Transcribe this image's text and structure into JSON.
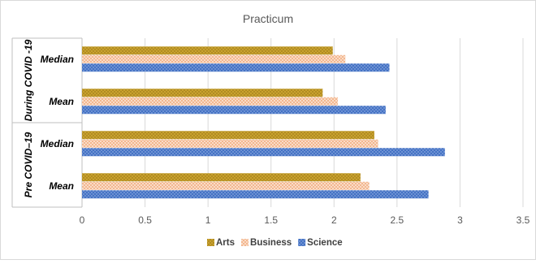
{
  "chart_data": {
    "type": "bar",
    "orientation": "horizontal",
    "title": "Practicum",
    "groups": [
      {
        "label": "During COVID -19",
        "categories": [
          "Median",
          "Mean"
        ]
      },
      {
        "label": "Pre COVID–19",
        "categories": [
          "Median",
          "Mean"
        ]
      }
    ],
    "series": [
      {
        "name": "Arts",
        "color": "#c9a22e",
        "pattern": "dotted",
        "values": [
          1.99,
          1.91,
          2.32,
          2.21
        ]
      },
      {
        "name": "Business",
        "color": "#f5c9a8",
        "pattern": "crosshatch",
        "values": [
          2.09,
          2.03,
          2.35,
          2.28
        ]
      },
      {
        "name": "Science",
        "color": "#4472c4",
        "pattern": "dotted",
        "values": [
          2.44,
          2.41,
          2.88,
          2.75
        ]
      }
    ],
    "xlim": [
      0,
      3.5
    ],
    "xticks": [
      "0",
      "0.5",
      "1",
      "1.5",
      "2",
      "2.5",
      "3",
      "3.5"
    ],
    "grid": "vertical",
    "legend_position": "bottom"
  }
}
